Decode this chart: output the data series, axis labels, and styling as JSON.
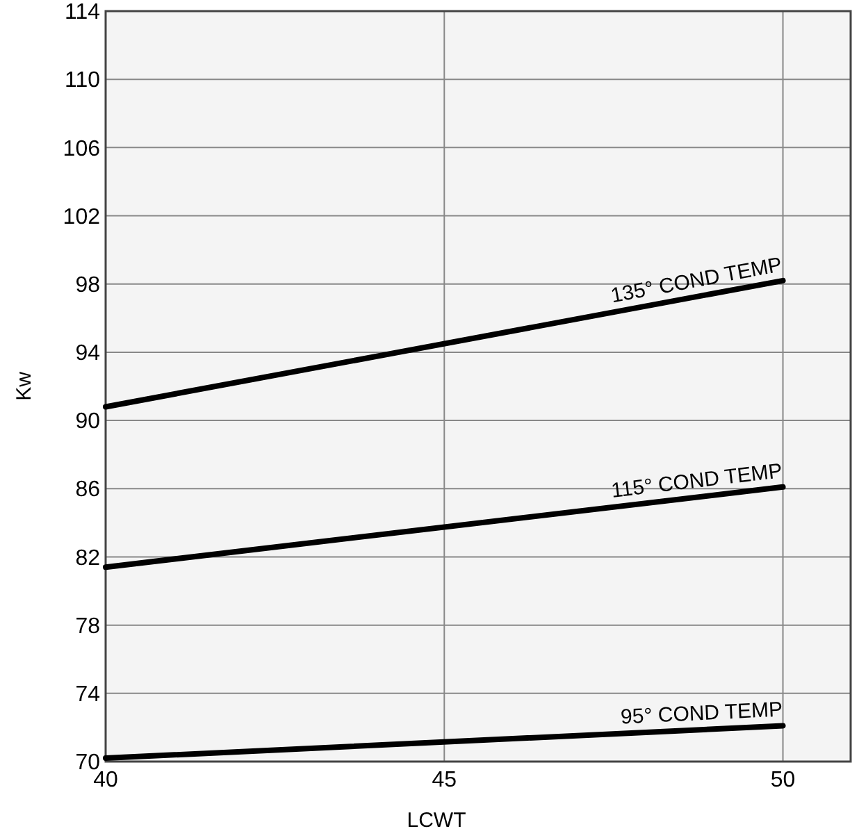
{
  "chart_data": {
    "type": "line",
    "xlabel": "LCWT",
    "ylabel": "Kw",
    "x": [
      40,
      50
    ],
    "xlim": [
      40,
      51
    ],
    "xticks": [
      40,
      45,
      50
    ],
    "ylim": [
      70,
      114
    ],
    "yticks": [
      70,
      74,
      78,
      82,
      86,
      90,
      94,
      98,
      102,
      106,
      110,
      114
    ],
    "grid": true,
    "marker": "none",
    "line_style": "solid",
    "series": [
      {
        "name": "135° COND TEMP",
        "color": "#000000",
        "values": [
          90.8,
          98.2
        ]
      },
      {
        "name": "115° COND TEMP",
        "color": "#000000",
        "values": [
          81.4,
          86.1
        ]
      },
      {
        "name": "95° COND TEMP",
        "color": "#000000",
        "values": [
          70.2,
          72.1
        ]
      }
    ]
  }
}
